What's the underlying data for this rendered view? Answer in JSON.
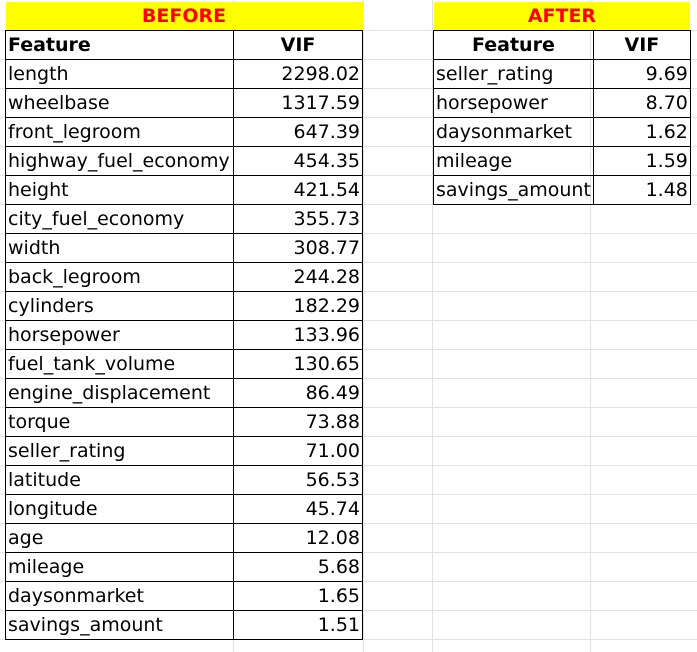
{
  "before": {
    "title": "BEFORE",
    "header": {
      "feature": "Feature",
      "vif": "VIF"
    },
    "rows": [
      {
        "feature": "length",
        "vif": "2298.02"
      },
      {
        "feature": "wheelbase",
        "vif": "1317.59"
      },
      {
        "feature": "front_legroom",
        "vif": "647.39"
      },
      {
        "feature": "highway_fuel_economy",
        "vif": "454.35"
      },
      {
        "feature": "height",
        "vif": "421.54"
      },
      {
        "feature": "city_fuel_economy",
        "vif": "355.73"
      },
      {
        "feature": "width",
        "vif": "308.77"
      },
      {
        "feature": "back_legroom",
        "vif": "244.28"
      },
      {
        "feature": "cylinders",
        "vif": "182.29"
      },
      {
        "feature": "horsepower",
        "vif": "133.96"
      },
      {
        "feature": "fuel_tank_volume",
        "vif": "130.65"
      },
      {
        "feature": "engine_displacement",
        "vif": "86.49"
      },
      {
        "feature": "torque",
        "vif": "73.88"
      },
      {
        "feature": "seller_rating",
        "vif": "71.00"
      },
      {
        "feature": "latitude",
        "vif": "56.53"
      },
      {
        "feature": "longitude",
        "vif": "45.74"
      },
      {
        "feature": "age",
        "vif": "12.08"
      },
      {
        "feature": "mileage",
        "vif": "5.68"
      },
      {
        "feature": "daysonmarket",
        "vif": "1.65"
      },
      {
        "feature": "savings_amount",
        "vif": "1.51"
      }
    ]
  },
  "after": {
    "title": "AFTER",
    "header": {
      "feature": "Feature",
      "vif": "VIF"
    },
    "rows": [
      {
        "feature": "seller_rating",
        "vif": "9.69"
      },
      {
        "feature": "horsepower",
        "vif": "8.70"
      },
      {
        "feature": "daysonmarket",
        "vif": "1.62"
      },
      {
        "feature": "mileage",
        "vif": "1.59"
      },
      {
        "feature": "savings_amount",
        "vif": "1.48"
      }
    ]
  },
  "colors": {
    "title_background": "#ffff00",
    "title_text": "#ff0000"
  }
}
